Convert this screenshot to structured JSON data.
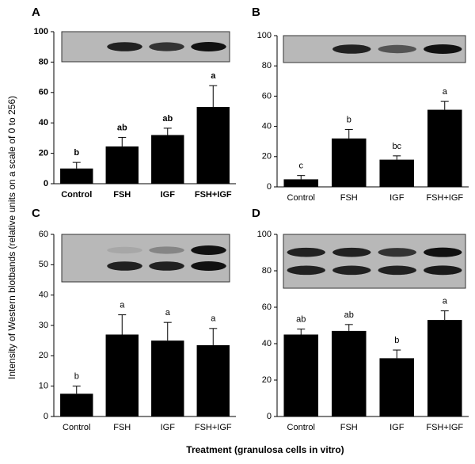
{
  "ylabel": "Intensity of Western blotbands (relative units on a scale of 0 to 256)",
  "xlabel": "Treatment (granulosa cells in vitro)",
  "chart_data": [
    {
      "type": "bar",
      "panel": "A",
      "categories": [
        "Control",
        "FSH",
        "IGF",
        "FSH+IGF"
      ],
      "values": [
        10,
        24.5,
        32,
        50.5
      ],
      "errors": [
        4,
        6,
        4.5,
        14
      ],
      "annotations": [
        "b",
        "ab",
        "ab",
        "a"
      ],
      "color": "#000000",
      "ylim": [
        0,
        100
      ],
      "yticks": [
        0,
        20,
        40,
        60,
        80,
        100
      ]
    },
    {
      "type": "bar",
      "panel": "B",
      "categories": [
        "Control",
        "FSH",
        "IGF",
        "FSH+IGF"
      ],
      "values": [
        5,
        32,
        18,
        51
      ],
      "errors": [
        2.5,
        6,
        2.5,
        5.5
      ],
      "annotations": [
        "c",
        "b",
        "bc",
        "a"
      ],
      "color": "#000000",
      "ylim": [
        0,
        100
      ],
      "yticks": [
        0,
        20,
        40,
        60,
        80,
        100
      ]
    },
    {
      "type": "bar",
      "panel": "C",
      "categories": [
        "Control",
        "FSH",
        "IGF",
        "FSH+IGF"
      ],
      "values": [
        7.5,
        27,
        25,
        23.5
      ],
      "errors": [
        2.5,
        6.5,
        6,
        5.5
      ],
      "annotations": [
        "b",
        "a",
        "a",
        "a"
      ],
      "color": "#000000",
      "ylim": [
        0,
        60
      ],
      "yticks": [
        0,
        10,
        20,
        30,
        40,
        50,
        60
      ]
    },
    {
      "type": "bar",
      "panel": "D",
      "categories": [
        "Control",
        "FSH",
        "IGF",
        "FSH+IGF"
      ],
      "values": [
        45,
        47,
        32,
        53
      ],
      "errors": [
        3,
        3.5,
        4.5,
        5
      ],
      "annotations": [
        "ab",
        "ab",
        "b",
        "a"
      ],
      "color": "#000000",
      "ylim": [
        0,
        100
      ],
      "yticks": [
        0,
        20,
        40,
        60,
        80,
        100
      ]
    }
  ]
}
